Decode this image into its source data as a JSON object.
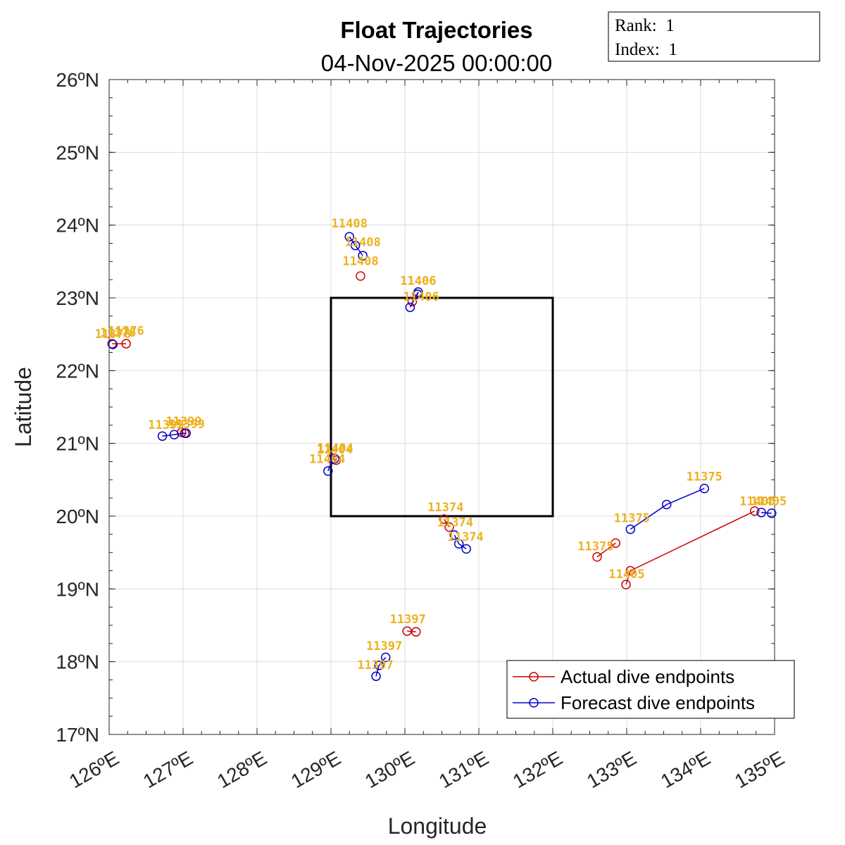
{
  "chart_data": {
    "type": "line",
    "title": "Float Trajectories",
    "subtitle": "04-Nov-2025 00:00:00",
    "xlabel": "Longitude",
    "ylabel": "Latitude",
    "xlim": [
      126,
      135
    ],
    "ylim": [
      17,
      26
    ],
    "grid": true,
    "x_ticks": [
      126,
      127,
      128,
      129,
      130,
      131,
      132,
      133,
      134,
      135
    ],
    "x_tick_labels": [
      "126ºE",
      "127ºE",
      "128ºE",
      "129ºE",
      "130ºE",
      "131ºE",
      "132ºE",
      "133ºE",
      "134ºE",
      "135ºE"
    ],
    "y_ticks": [
      17,
      18,
      19,
      20,
      21,
      22,
      23,
      24,
      25,
      26
    ],
    "y_tick_labels": [
      "17ºN",
      "18ºN",
      "19ºN",
      "20ºN",
      "21ºN",
      "22ºN",
      "23ºN",
      "24ºN",
      "25ºN",
      "26ºN"
    ],
    "info_box": {
      "rank_label": "Rank:  1",
      "index_label": "Index:  1"
    },
    "region_box": {
      "lon": [
        129,
        132
      ],
      "lat": [
        20,
        23
      ],
      "color": "#000000"
    },
    "colors": {
      "actual": "#CC0000",
      "forecast": "#0000CC",
      "label": "#EDB120"
    },
    "legend": {
      "location": "bottom-right",
      "entries": [
        "Actual dive endpoints",
        "Forecast dive endpoints"
      ]
    },
    "series": [
      {
        "name": "Actual dive endpoints",
        "segments": [
          {
            "float": "11376",
            "points": [
              [
                126.04,
                22.37
              ],
              [
                126.23,
                22.37
              ]
            ]
          },
          {
            "float": "11399",
            "points": [
              [
                127.02,
                21.14
              ],
              [
                126.98,
                21.15
              ]
            ]
          },
          {
            "float": "11408",
            "points": [
              [
                129.4,
                23.3
              ]
            ]
          },
          {
            "float": "11406",
            "points": [
              [
                130.1,
                22.95
              ],
              [
                130.17,
                23.05
              ]
            ]
          },
          {
            "float": "11404",
            "points": [
              [
                129.07,
                20.77
              ],
              [
                129.02,
                20.8
              ]
            ]
          },
          {
            "float": "11374",
            "points": [
              [
                130.53,
                19.96
              ],
              [
                130.6,
                19.85
              ]
            ]
          },
          {
            "float": "11397",
            "points": [
              [
                130.03,
                18.42
              ],
              [
                130.15,
                18.41
              ]
            ]
          },
          {
            "float": "11375",
            "points": [
              [
                132.6,
                19.44
              ],
              [
                132.85,
                19.63
              ]
            ]
          },
          {
            "float": "11405",
            "points": [
              [
                132.99,
                19.06
              ],
              [
                133.05,
                19.25
              ],
              [
                134.73,
                20.07
              ]
            ]
          }
        ]
      },
      {
        "name": "Forecast dive endpoints",
        "segments": [
          {
            "float": "11376",
            "points": [
              [
                126.05,
                22.36
              ]
            ]
          },
          {
            "float": "11399",
            "points": [
              [
                126.72,
                21.1
              ],
              [
                126.88,
                21.12
              ],
              [
                127.04,
                21.14
              ]
            ]
          },
          {
            "float": "11408",
            "points": [
              [
                129.25,
                23.84
              ],
              [
                129.33,
                23.72
              ],
              [
                129.43,
                23.58
              ]
            ]
          },
          {
            "float": "11406",
            "points": [
              [
                130.07,
                22.87
              ],
              [
                130.18,
                23.08
              ],
              [
                130.17,
                23.05
              ]
            ]
          },
          {
            "float": "11404",
            "points": [
              [
                128.96,
                20.62
              ],
              [
                129.02,
                20.78
              ],
              [
                129.05,
                20.79
              ]
            ]
          },
          {
            "float": "11374",
            "points": [
              [
                130.67,
                19.74
              ],
              [
                130.73,
                19.62
              ],
              [
                130.83,
                19.55
              ]
            ]
          },
          {
            "float": "11397",
            "points": [
              [
                129.61,
                17.8
              ],
              [
                129.65,
                17.95
              ],
              [
                129.74,
                18.06
              ]
            ]
          },
          {
            "float": "11375",
            "points": [
              [
                133.05,
                19.82
              ],
              [
                133.54,
                20.16
              ],
              [
                134.05,
                20.38
              ]
            ]
          },
          {
            "float": "11405",
            "points": [
              [
                134.82,
                20.05
              ],
              [
                134.96,
                20.04
              ]
            ]
          }
        ]
      }
    ],
    "annotations": [
      {
        "text": "11408",
        "lon": 129.25,
        "lat": 23.97
      },
      {
        "text": "11408",
        "lon": 129.43,
        "lat": 23.71
      },
      {
        "text": "11408",
        "lon": 129.4,
        "lat": 23.45
      },
      {
        "text": "11406",
        "lon": 130.18,
        "lat": 23.18
      },
      {
        "text": "11406",
        "lon": 130.18,
        "lat": 23.18
      },
      {
        "text": "11406",
        "lon": 130.22,
        "lat": 22.96
      },
      {
        "text": "11376",
        "lon": 126.12,
        "lat": 22.47
      },
      {
        "text": "11376",
        "lon": 126.23,
        "lat": 22.49
      },
      {
        "text": "11376",
        "lon": 126.05,
        "lat": 22.45
      },
      {
        "text": "11399",
        "lon": 127.01,
        "lat": 21.25
      },
      {
        "text": "11399",
        "lon": 127.05,
        "lat": 21.21
      },
      {
        "text": "11399",
        "lon": 126.77,
        "lat": 21.2
      },
      {
        "text": "11404",
        "lon": 129.06,
        "lat": 20.88
      },
      {
        "text": "11404",
        "lon": 129.05,
        "lat": 20.86
      },
      {
        "text": "11404",
        "lon": 128.95,
        "lat": 20.73
      },
      {
        "text": "11374",
        "lon": 130.55,
        "lat": 20.07
      },
      {
        "text": "11374",
        "lon": 130.68,
        "lat": 19.86
      },
      {
        "text": "11374",
        "lon": 130.82,
        "lat": 19.66
      },
      {
        "text": "11375",
        "lon": 134.05,
        "lat": 20.49
      },
      {
        "text": "11375",
        "lon": 133.07,
        "lat": 19.92
      },
      {
        "text": "11375",
        "lon": 132.58,
        "lat": 19.53
      },
      {
        "text": "11405",
        "lon": 134.77,
        "lat": 20.15
      },
      {
        "text": "11405",
        "lon": 134.92,
        "lat": 20.15
      },
      {
        "text": "11405",
        "lon": 133.0,
        "lat": 19.15
      },
      {
        "text": "11397",
        "lon": 130.04,
        "lat": 18.53
      },
      {
        "text": "11397",
        "lon": 129.72,
        "lat": 18.16
      },
      {
        "text": "11397",
        "lon": 129.6,
        "lat": 17.9
      }
    ]
  }
}
